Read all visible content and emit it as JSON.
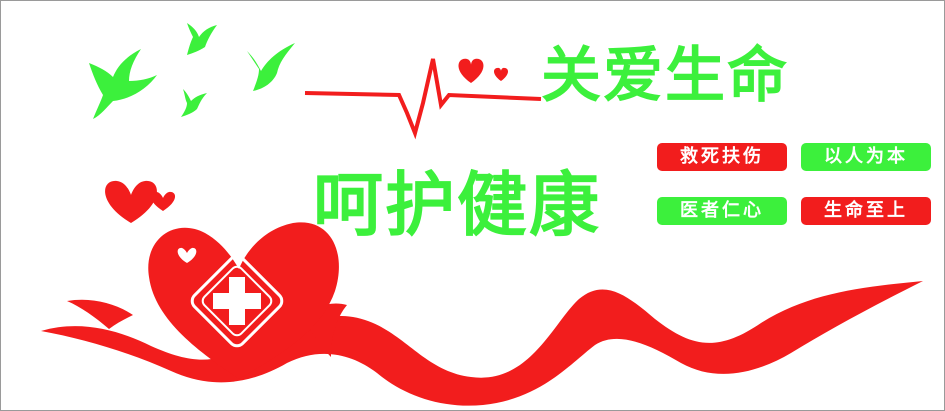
{
  "headline": {
    "line_1": "关爱生命",
    "line_2": "呵护健康"
  },
  "badges": [
    {
      "label": "救死扶伤",
      "color": "#f21d1d"
    },
    {
      "label": "以人为本",
      "color": "#3cf03c"
    },
    {
      "label": "医者仁心",
      "color": "#3cf03c"
    },
    {
      "label": "生命至上",
      "color": "#f21d1d"
    }
  ],
  "icons": [
    "dove-icon",
    "heart-icon",
    "heartbeat-line",
    "medical-cross-icon",
    "ribbon"
  ],
  "colors": {
    "red": "#f21d1d",
    "green": "#3cf03c",
    "background": "#ffffff"
  }
}
